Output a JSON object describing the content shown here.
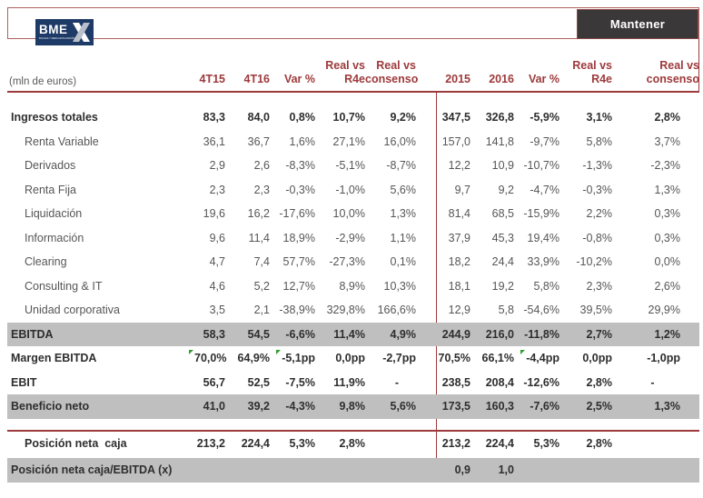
{
  "brand": {
    "logo_text": "BME",
    "logo_sub": "BOLSAS Y MERCADOS ESPAÑOLES"
  },
  "rating": {
    "label": "Mantener"
  },
  "colors": {
    "maroon": "#9d3a3c",
    "band_gray": "#bfbfbf",
    "button_bg": "#3a3838",
    "logo_navy": "#1e3a66",
    "flag_green": "#2f9e2f"
  },
  "table": {
    "unit_label": "(mln de euros)",
    "headers": [
      "4T15",
      "4T16",
      "Var %",
      "Real vs\nR4e",
      "Real vs\nconsenso",
      "2015",
      "2016",
      "Var %",
      "Real vs\nR4e",
      "Real vs\nconsenso"
    ],
    "rows": [
      {
        "label": "Ingresos totales",
        "bold": true,
        "values": [
          "83,3",
          "84,0",
          "0,8%",
          "10,7%",
          "9,2%",
          "347,5",
          "326,8",
          "-5,9%",
          "3,1%",
          "2,8%"
        ]
      },
      {
        "label": "Renta Variable",
        "indent": true,
        "values": [
          "36,1",
          "36,7",
          "1,6%",
          "27,1%",
          "16,0%",
          "157,0",
          "141,8",
          "-9,7%",
          "5,8%",
          "3,7%"
        ]
      },
      {
        "label": "Derivados",
        "indent": true,
        "values": [
          "2,9",
          "2,6",
          "-8,3%",
          "-5,1%",
          "-8,7%",
          "12,2",
          "10,9",
          "-10,7%",
          "-1,3%",
          "-2,3%"
        ]
      },
      {
        "label": "Renta Fija",
        "indent": true,
        "values": [
          "2,3",
          "2,3",
          "-0,3%",
          "-1,0%",
          "5,6%",
          "9,7",
          "9,2",
          "-4,7%",
          "-0,3%",
          "1,3%"
        ]
      },
      {
        "label": "Liquidación",
        "indent": true,
        "values": [
          "19,6",
          "16,2",
          "-17,6%",
          "10,0%",
          "1,3%",
          "81,4",
          "68,5",
          "-15,9%",
          "2,2%",
          "0,3%"
        ]
      },
      {
        "label": "Información",
        "indent": true,
        "values": [
          "9,6",
          "11,4",
          "18,9%",
          "-2,9%",
          "1,1%",
          "37,9",
          "45,3",
          "19,4%",
          "-0,8%",
          "0,3%"
        ]
      },
      {
        "label": "Clearing",
        "indent": true,
        "values": [
          "4,7",
          "7,4",
          "57,7%",
          "-27,3%",
          "0,1%",
          "18,2",
          "24,4",
          "33,9%",
          "-10,2%",
          "0,0%"
        ]
      },
      {
        "label": "Consulting & IT",
        "indent": true,
        "values": [
          "4,6",
          "5,2",
          "12,7%",
          "8,9%",
          "10,3%",
          "18,1",
          "19,2",
          "5,8%",
          "2,3%",
          "2,6%"
        ]
      },
      {
        "label": "Unidad corporativa",
        "indent": true,
        "values": [
          "3,5",
          "2,1",
          "-38,9%",
          "329,8%",
          "166,6%",
          "12,9",
          "5,8",
          "-54,6%",
          "39,5%",
          "29,9%"
        ]
      },
      {
        "label": "EBITDA",
        "bold": true,
        "shaded": true,
        "values": [
          "58,3",
          "54,5",
          "-6,6%",
          "11,4%",
          "4,9%",
          "244,9",
          "216,0",
          "-11,8%",
          "2,7%",
          "1,2%"
        ]
      },
      {
        "label": "Margen EBITDA",
        "bold": true,
        "flags": [
          0,
          2,
          7
        ],
        "values": [
          "70,0%",
          "64,9%",
          "-5,1pp",
          "0,0pp",
          "-2,7pp",
          "70,5%",
          "66,1%",
          "-4,4pp",
          "0,0pp",
          "-1,0pp"
        ]
      },
      {
        "label": "EBIT",
        "bold": true,
        "values": [
          "56,7",
          "52,5",
          "-7,5%",
          "11,9%",
          "-",
          "238,5",
          "208,4",
          "-12,6%",
          "2,8%",
          "-"
        ]
      },
      {
        "label": "Beneficio neto",
        "bold": true,
        "shaded": true,
        "values": [
          "41,0",
          "39,2",
          "-4,3%",
          "9,8%",
          "5,6%",
          "173,5",
          "160,3",
          "-7,6%",
          "2,5%",
          "1,3%"
        ]
      },
      {
        "label": "Posición neta  caja",
        "bold": true,
        "indent": true,
        "sep": true,
        "values": [
          "213,2",
          "224,4",
          "5,3%",
          "2,8%",
          "",
          "213,2",
          "224,4",
          "5,3%",
          "2,8%",
          ""
        ]
      },
      {
        "label": "Posición neta caja/EBITDA (x)",
        "bold": true,
        "shaded": true,
        "values": [
          "",
          "",
          "",
          "",
          "",
          "0,9",
          "1,0",
          "",
          "",
          ""
        ]
      }
    ]
  }
}
